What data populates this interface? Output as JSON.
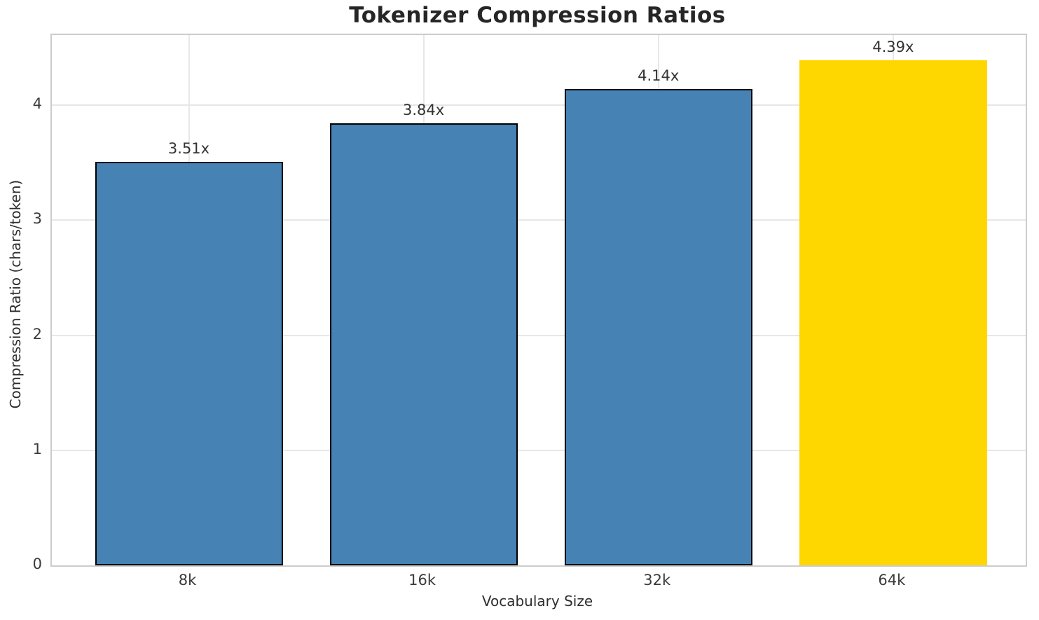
{
  "title": "Tokenizer Compression Ratios",
  "chart_data": {
    "type": "bar",
    "title": "Tokenizer Compression Ratios",
    "xlabel": "Vocabulary Size",
    "ylabel": "Compression Ratio (chars/token)",
    "categories": [
      "8k",
      "16k",
      "32k",
      "64k"
    ],
    "values": [
      3.51,
      3.84,
      4.14,
      4.39
    ],
    "value_labels": [
      "3.51x",
      "3.84x",
      "4.14x",
      "4.39x"
    ],
    "yticks": [
      0,
      1,
      2,
      3,
      4
    ],
    "ylim": [
      0,
      4.61
    ],
    "grid": true,
    "legend": false,
    "highlight_category": "64k",
    "bar_colors": [
      "#4682B4",
      "#4682B4",
      "#4682B4",
      "#FFD700"
    ],
    "bar_edge_colors": [
      "#000000",
      "#000000",
      "#000000",
      "none"
    ]
  },
  "colors": {
    "bar_blue": "#4682B4",
    "bar_gold": "#FFD700",
    "bar_edge": "#000000",
    "grid": "#e7e7e7",
    "spine": "#cccccc",
    "title_text": "#262626",
    "tick_text": "#3b3b3b"
  }
}
